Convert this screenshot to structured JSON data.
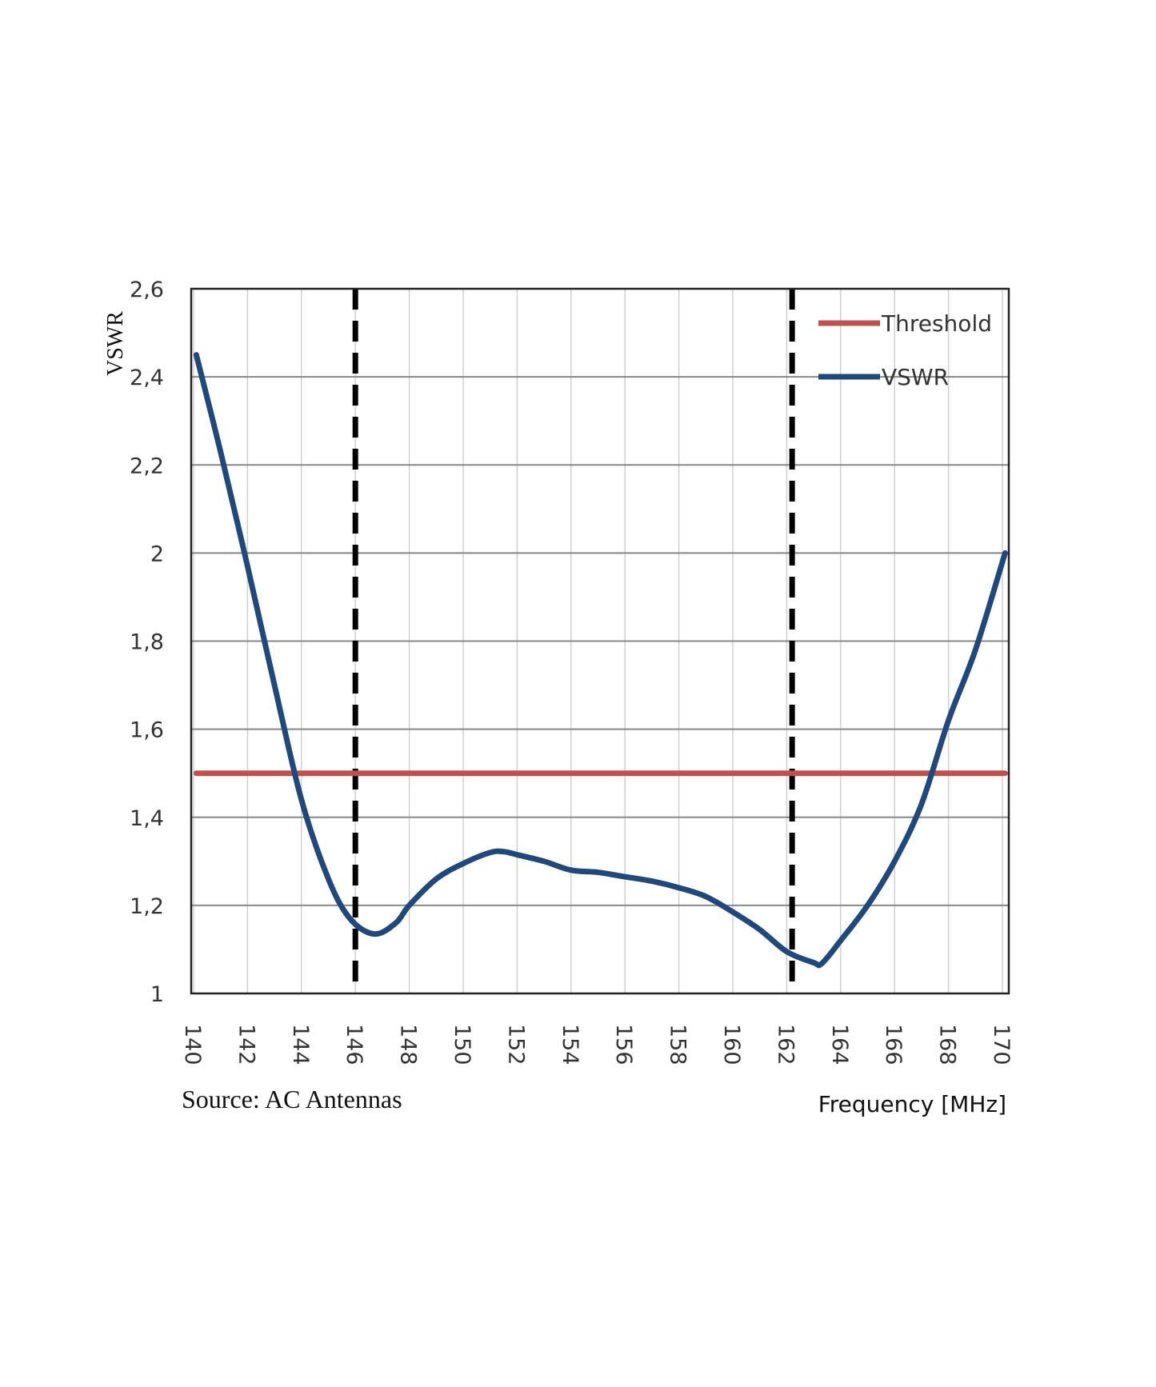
{
  "chart_data": {
    "type": "line",
    "title": "",
    "xlabel": "Frequency [MHz]",
    "ylabel": "VSWR",
    "source": "Source: AC Antennas",
    "xlim": [
      140,
      170
    ],
    "ylim": [
      1,
      2.6
    ],
    "x_ticks": [
      "140",
      "142",
      "144",
      "146",
      "148",
      "150",
      "152",
      "154",
      "156",
      "158",
      "160",
      "162",
      "164",
      "166",
      "168",
      "170"
    ],
    "y_ticks": [
      {
        "value": 1,
        "label": "1"
      },
      {
        "value": 1.2,
        "label": "1,2"
      },
      {
        "value": 1.4,
        "label": "1,4"
      },
      {
        "value": 1.6,
        "label": "1,6"
      },
      {
        "value": 1.8,
        "label": "1,8"
      },
      {
        "value": 2,
        "label": "2"
      },
      {
        "value": 2.2,
        "label": "2,2"
      },
      {
        "value": 2.4,
        "label": "2,4"
      },
      {
        "value": 2.6,
        "label": "2,6"
      }
    ],
    "grid": true,
    "legend_placement": "top-right",
    "markers_dashed_x": [
      146,
      162.2
    ],
    "series": [
      {
        "name": "Threshold",
        "color": "#c0504d",
        "x": [
          140.1,
          170.1
        ],
        "y": [
          1.5,
          1.5
        ]
      },
      {
        "name": "VSWR",
        "color": "#1f497d",
        "x": [
          140.1,
          141,
          142,
          143,
          144,
          145,
          145.8,
          146.7,
          147.5,
          148,
          149,
          150,
          151,
          151.5,
          152,
          153,
          154,
          155,
          156,
          157,
          158,
          159,
          160,
          161,
          162,
          163,
          163.3,
          164,
          165,
          166,
          167,
          168,
          169,
          170.1
        ],
        "y": [
          2.45,
          2.23,
          1.97,
          1.7,
          1.44,
          1.26,
          1.17,
          1.135,
          1.16,
          1.2,
          1.26,
          1.295,
          1.32,
          1.322,
          1.315,
          1.3,
          1.28,
          1.275,
          1.265,
          1.255,
          1.24,
          1.22,
          1.185,
          1.145,
          1.095,
          1.07,
          1.068,
          1.12,
          1.2,
          1.3,
          1.43,
          1.62,
          1.78,
          2.0
        ]
      }
    ]
  }
}
